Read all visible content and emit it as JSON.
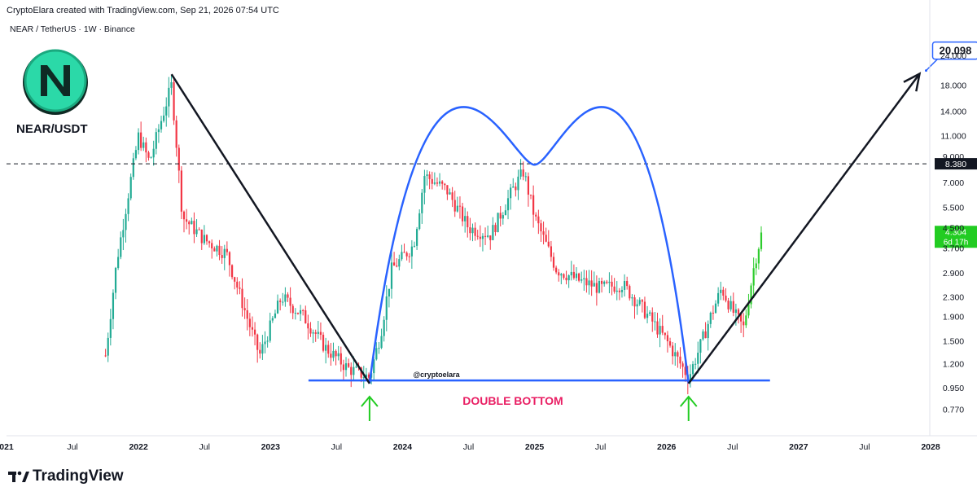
{
  "header": {
    "attribution": "CryptoElara created with TradingView.com, Sep 21, 2026 07:54 UTC",
    "symbol_line": "NEAR / TetherUS · 1W · Binance"
  },
  "overlay": {
    "pair_label": "NEAR/USDT",
    "watermark": "@cryptoelara",
    "pattern_label": "DOUBLE BOTTOM",
    "target_label": "20.098"
  },
  "brand": {
    "name": "TradingView"
  },
  "colors": {
    "up": "#22ab94",
    "up_bright": "#2ecc2e",
    "down": "#f23645",
    "arc": "#2962ff",
    "support": "#2962ff",
    "arrow_green": "#22cc22",
    "pattern_text": "#e91e63",
    "trend": "#131722",
    "last_price_bg": "#22cc22",
    "logo_teal": "#2bd9a8"
  },
  "chart_data": {
    "type": "candlestick",
    "symbol": "NEAR / TetherUS",
    "interval": "1W",
    "exchange": "Binance",
    "y_scale": "log",
    "ylim": [
      0.62,
      30
    ],
    "x_range": [
      "2021-10",
      "2028-03"
    ],
    "x_tick_labels": [
      {
        "label": "021",
        "t": "2021-01"
      },
      {
        "label": "Jul",
        "t": "2021-07"
      },
      {
        "label": "2022",
        "t": "2022-01"
      },
      {
        "label": "Jul",
        "t": "2022-07"
      },
      {
        "label": "2023",
        "t": "2023-01"
      },
      {
        "label": "Jul",
        "t": "2023-07"
      },
      {
        "label": "2024",
        "t": "2024-01"
      },
      {
        "label": "Jul",
        "t": "2024-07"
      },
      {
        "label": "2025",
        "t": "2025-01"
      },
      {
        "label": "Jul",
        "t": "2025-07"
      },
      {
        "label": "2026",
        "t": "2026-01"
      },
      {
        "label": "Jul",
        "t": "2026-07"
      },
      {
        "label": "2027",
        "t": "2027-01"
      },
      {
        "label": "Jul",
        "t": "2027-07"
      },
      {
        "label": "2028",
        "t": "2028-01"
      }
    ],
    "y_tick_labels": [
      "24.000",
      "18.000",
      "14.000",
      "11.000",
      "9.000",
      "7.000",
      "5.500",
      "4.500",
      "3.700",
      "2.900",
      "2.300",
      "1.900",
      "1.500",
      "1.200",
      "0.950",
      "0.770"
    ],
    "price_path": [
      [
        "2021-10",
        1.3
      ],
      [
        "2021-11",
        3.2
      ],
      [
        "2021-12",
        6.0
      ],
      [
        "2022-01",
        11.0
      ],
      [
        "2022-02",
        8.5
      ],
      [
        "2022-03",
        12.5
      ],
      [
        "2022-04",
        18.0
      ],
      [
        "2022-05",
        5.0
      ],
      [
        "2022-07",
        4.0
      ],
      [
        "2022-09",
        3.5
      ],
      [
        "2022-11",
        1.8
      ],
      [
        "2022-12",
        1.3
      ],
      [
        "2023-02",
        2.3
      ],
      [
        "2023-04",
        1.9
      ],
      [
        "2023-06",
        1.4
      ],
      [
        "2023-08",
        1.15
      ],
      [
        "2023-10",
        1.05
      ],
      [
        "2023-11",
        1.6
      ],
      [
        "2023-12",
        3.0
      ],
      [
        "2024-02",
        3.8
      ],
      [
        "2024-03",
        7.5
      ],
      [
        "2024-05",
        6.5
      ],
      [
        "2024-07",
        4.5
      ],
      [
        "2024-09",
        4.2
      ],
      [
        "2024-11",
        6.5
      ],
      [
        "2024-12",
        7.8
      ],
      [
        "2025-01",
        5.0
      ],
      [
        "2025-03",
        3.0
      ],
      [
        "2025-05",
        2.7
      ],
      [
        "2025-07",
        2.5
      ],
      [
        "2025-09",
        2.6
      ],
      [
        "2025-11",
        2.0
      ],
      [
        "2026-01",
        1.5
      ],
      [
        "2026-03",
        1.05
      ],
      [
        "2026-04",
        1.4
      ],
      [
        "2026-05",
        1.9
      ],
      [
        "2026-06",
        2.5
      ],
      [
        "2026-07",
        2.0
      ],
      [
        "2026-08",
        1.7
      ],
      [
        "2026-09",
        3.2
      ],
      [
        "2026-09-21",
        4.304
      ]
    ],
    "resistance_level": 8.38,
    "support_level": 1.02,
    "last_price": "4.304",
    "resistance_label": "8.380",
    "countdown": "6d 17h",
    "target_price": 20.098,
    "annotations": {
      "trend_down": [
        [
          "2022-04",
          20.0
        ],
        [
          "2023-10",
          0.99
        ]
      ],
      "arc_bottoms": [
        [
          "2023-10",
          0.99
        ],
        [
          "2026-03",
          0.99
        ]
      ],
      "arc_peak": [
        "2025-01",
        8.3
      ],
      "double_bottom_points": [
        "2023-10",
        "2026-03"
      ],
      "projection": [
        [
          "2026-03",
          0.99
        ],
        [
          "2027-12",
          20.098
        ]
      ]
    }
  }
}
